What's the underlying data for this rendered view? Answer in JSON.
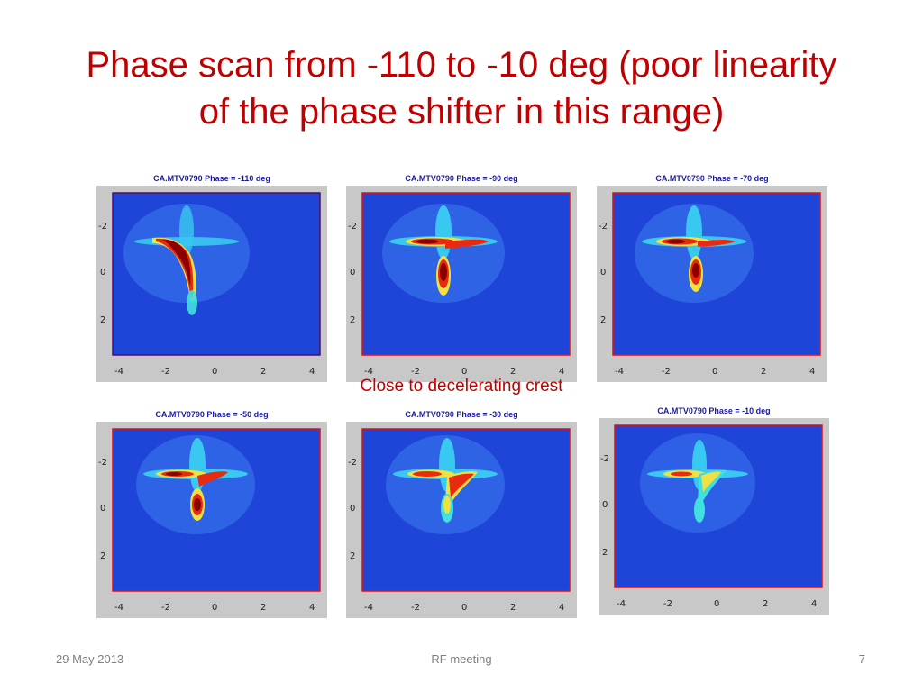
{
  "slide": {
    "title_line1": "Phase scan from -110 to -10 deg (poor linearity",
    "title_line2": "of the phase shifter in this range)",
    "caption": "Close to decelerating crest"
  },
  "panels": [
    {
      "title": "CA.MTV0790 Phase = -110 deg"
    },
    {
      "title": "CA.MTV0790 Phase = -90 deg"
    },
    {
      "title": "CA.MTV0790 Phase = -70 deg"
    },
    {
      "title": "CA.MTV0790 Phase = -50 deg"
    },
    {
      "title": "CA.MTV0790 Phase = -30 deg"
    },
    {
      "title": "CA.MTV0790 Phase = -10 deg"
    }
  ],
  "axes": {
    "x_ticks": [
      "-4",
      "-2",
      "0",
      "2",
      "4"
    ],
    "y_ticks": [
      "-2",
      "0",
      "2"
    ]
  },
  "colors": {
    "title": "#c00000",
    "background_field": "#1f44d8",
    "frame": "#e01010"
  },
  "footer": {
    "date": "29 May 2013",
    "center": "RF meeting",
    "page": "7"
  }
}
